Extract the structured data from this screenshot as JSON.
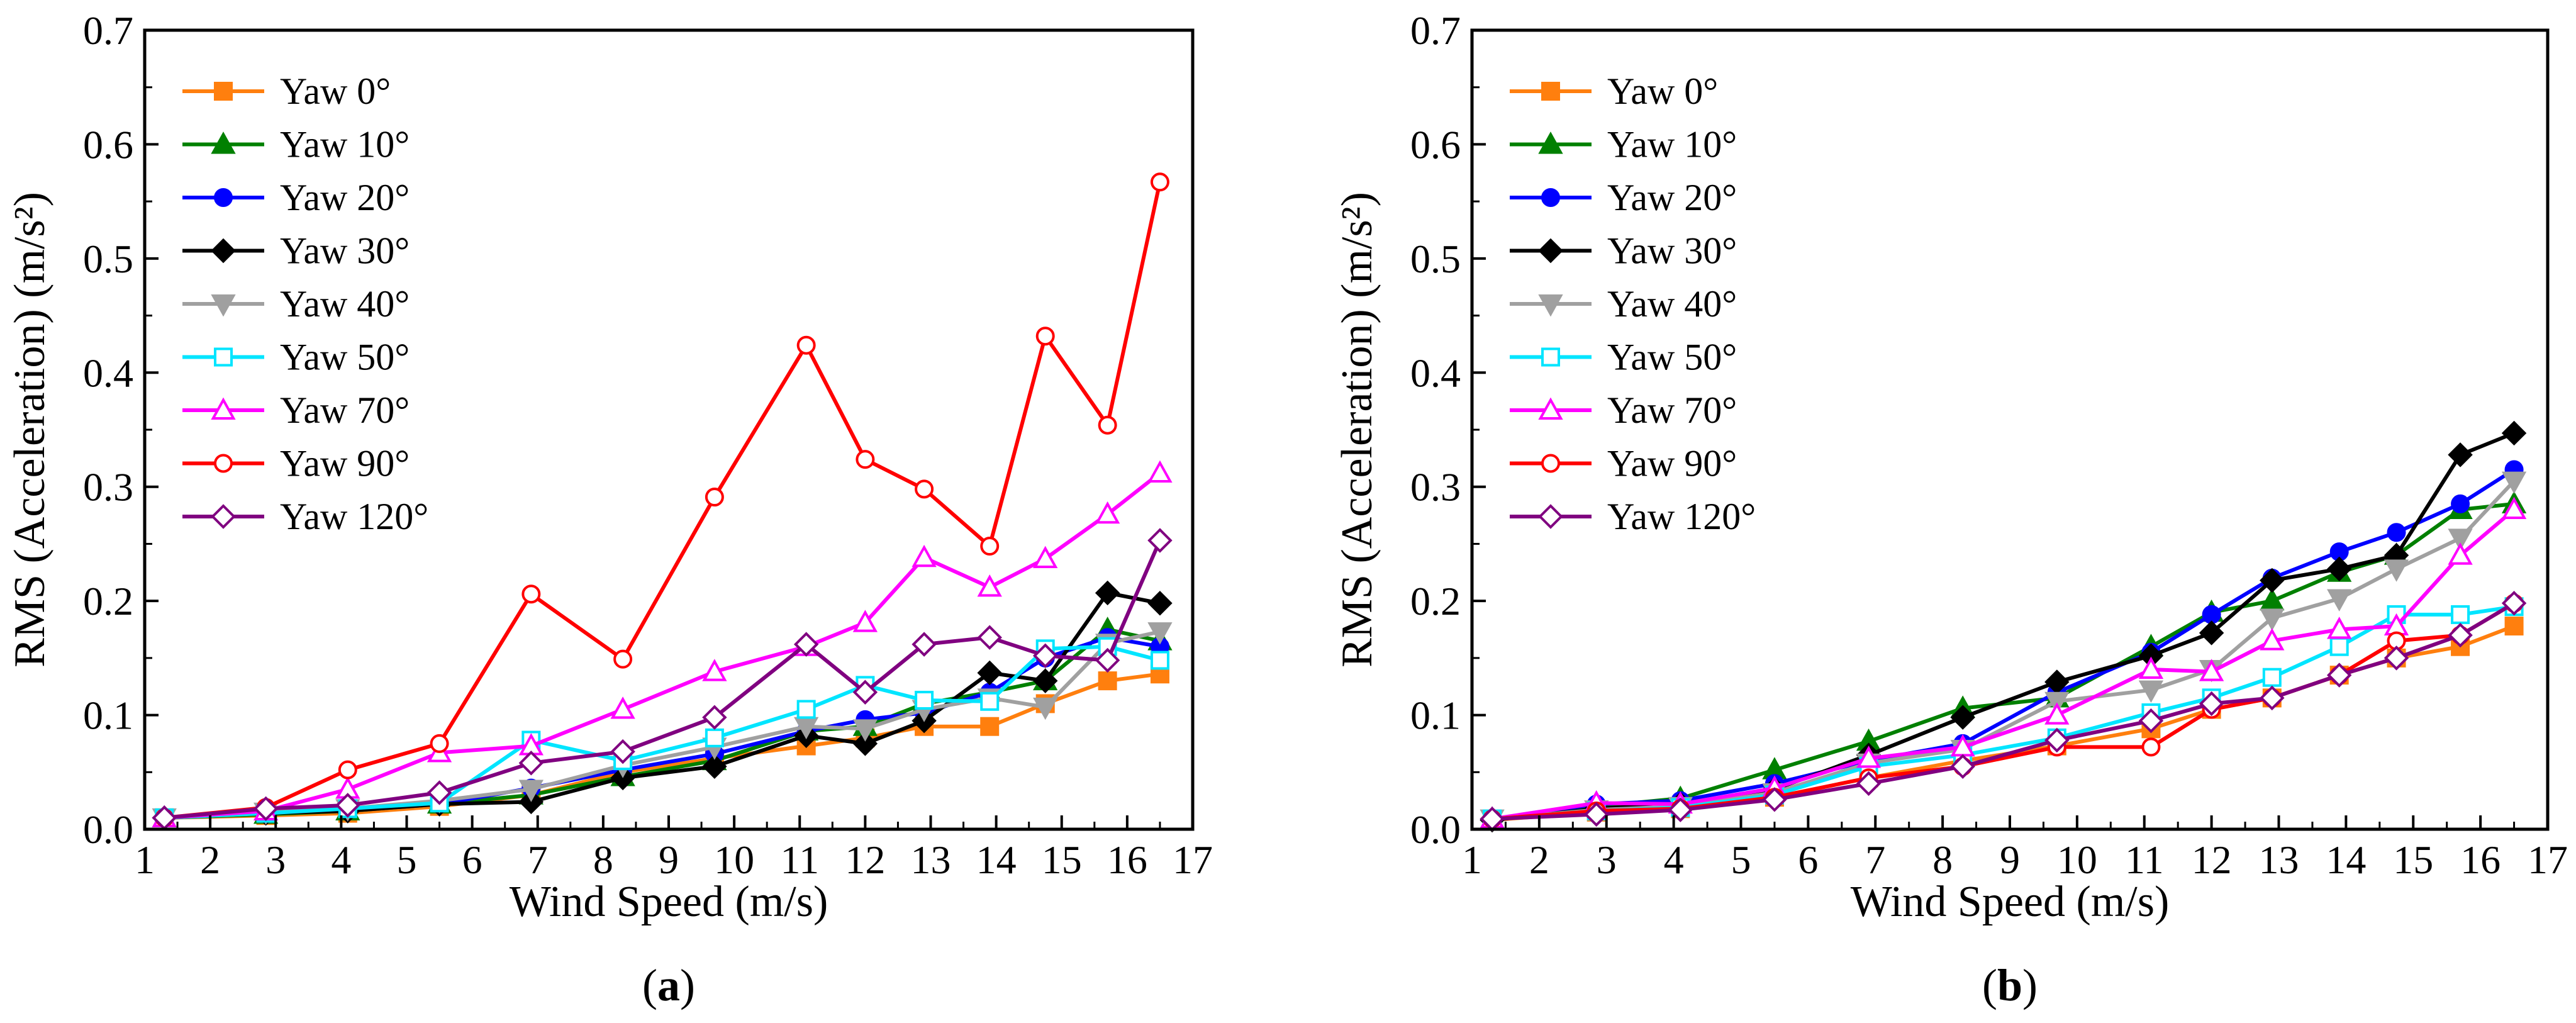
{
  "chart_data": [
    {
      "type": "line",
      "panel_label": {
        "open": "(",
        "letter": "a",
        "close": ")"
      },
      "title": "",
      "xlabel": "Wind Speed (m/s)",
      "ylabel": "RMS (Acceleration) (m/s²)",
      "xlim": [
        1,
        17
      ],
      "ylim": [
        0,
        0.7
      ],
      "xticks": [
        "1",
        "2",
        "3",
        "4",
        "5",
        "6",
        "7",
        "8",
        "9",
        "10",
        "11",
        "12",
        "13",
        "14",
        "15",
        "16",
        "17"
      ],
      "yticks": [
        "0.0",
        "0.1",
        "0.2",
        "0.3",
        "0.4",
        "0.5",
        "0.6",
        "0.7"
      ],
      "legend_position": "top-left",
      "x": [
        1.3,
        2.85,
        4.1,
        5.5,
        6.9,
        8.3,
        9.7,
        11.1,
        12.0,
        12.9,
        13.9,
        14.75,
        15.7,
        16.5
      ],
      "series": [
        {
          "name": "Yaw 0°",
          "color": "#FF7F0E",
          "marker": "square",
          "filled": true,
          "values": [
            0.01,
            0.012,
            0.014,
            0.02,
            0.03,
            0.05,
            0.062,
            0.073,
            0.08,
            0.09,
            0.09,
            0.11,
            0.13,
            0.136
          ]
        },
        {
          "name": "Yaw 10°",
          "color": "#008000",
          "marker": "triangle-up",
          "filled": true,
          "values": [
            0.01,
            0.013,
            0.016,
            0.022,
            0.03,
            0.046,
            0.06,
            0.086,
            0.09,
            0.11,
            0.12,
            0.13,
            0.175,
            0.165
          ]
        },
        {
          "name": "Yaw 20°",
          "color": "#0000FF",
          "marker": "circle",
          "filled": true,
          "values": [
            0.01,
            0.015,
            0.017,
            0.022,
            0.036,
            0.052,
            0.066,
            0.086,
            0.096,
            0.102,
            0.12,
            0.15,
            0.168,
            0.16
          ]
        },
        {
          "name": "Yaw 30°",
          "color": "#000000",
          "marker": "diamond",
          "filled": true,
          "values": [
            0.01,
            0.014,
            0.016,
            0.022,
            0.024,
            0.045,
            0.055,
            0.082,
            0.075,
            0.095,
            0.137,
            0.13,
            0.207,
            0.198
          ]
        },
        {
          "name": "Yaw 40°",
          "color": "#A0A0A0",
          "marker": "triangle-down",
          "filled": true,
          "values": [
            0.01,
            0.015,
            0.018,
            0.025,
            0.035,
            0.056,
            0.072,
            0.09,
            0.088,
            0.105,
            0.115,
            0.107,
            0.163,
            0.173
          ]
        },
        {
          "name": "Yaw 50°",
          "color": "#00E5FF",
          "marker": "square",
          "filled": false,
          "values": [
            0.01,
            0.014,
            0.018,
            0.023,
            0.078,
            0.06,
            0.08,
            0.105,
            0.126,
            0.113,
            0.112,
            0.158,
            0.16,
            0.148
          ]
        },
        {
          "name": "Yaw 70°",
          "color": "#FF00FF",
          "marker": "triangle-up",
          "filled": false,
          "values": [
            0.01,
            0.016,
            0.035,
            0.067,
            0.073,
            0.105,
            0.138,
            0.16,
            0.181,
            0.238,
            0.212,
            0.237,
            0.276,
            0.312
          ]
        },
        {
          "name": "Yaw 90°",
          "color": "#FF0000",
          "marker": "circle",
          "filled": false,
          "values": [
            0.01,
            0.019,
            0.052,
            0.075,
            0.206,
            0.149,
            0.291,
            0.424,
            0.324,
            0.298,
            0.248,
            0.432,
            0.354,
            0.567
          ]
        },
        {
          "name": "Yaw 120°",
          "color": "#800080",
          "marker": "diamond",
          "filled": false,
          "values": [
            0.01,
            0.018,
            0.021,
            0.032,
            0.058,
            0.068,
            0.098,
            0.162,
            0.12,
            0.162,
            0.168,
            0.152,
            0.148,
            0.253
          ]
        }
      ]
    },
    {
      "type": "line",
      "panel_label": {
        "open": "(",
        "letter": "b",
        "close": ")"
      },
      "title": "",
      "xlabel": "Wind Speed (m/s)",
      "ylabel": "RMS (Acceleration) (m/s²)",
      "xlim": [
        1,
        17
      ],
      "ylim": [
        0,
        0.7
      ],
      "xticks": [
        "1",
        "2",
        "3",
        "4",
        "5",
        "6",
        "7",
        "8",
        "9",
        "10",
        "11",
        "12",
        "13",
        "14",
        "15",
        "16",
        "17"
      ],
      "yticks": [
        "0.0",
        "0.1",
        "0.2",
        "0.3",
        "0.4",
        "0.5",
        "0.6",
        "0.7"
      ],
      "legend_position": "top-left",
      "x": [
        1.3,
        2.85,
        4.1,
        5.5,
        6.9,
        8.3,
        9.7,
        11.1,
        12.0,
        12.9,
        13.9,
        14.75,
        15.7,
        16.5
      ],
      "series": [
        {
          "name": "Yaw 0°",
          "color": "#FF7F0E",
          "marker": "square",
          "filled": true,
          "values": [
            0.008,
            0.015,
            0.018,
            0.028,
            0.045,
            0.06,
            0.073,
            0.088,
            0.105,
            0.115,
            0.135,
            0.15,
            0.16,
            0.178
          ]
        },
        {
          "name": "Yaw 10°",
          "color": "#008000",
          "marker": "triangle-up",
          "filled": true,
          "values": [
            0.009,
            0.02,
            0.027,
            0.052,
            0.077,
            0.106,
            0.115,
            0.16,
            0.19,
            0.2,
            0.225,
            0.24,
            0.28,
            0.285
          ]
        },
        {
          "name": "Yaw 20°",
          "color": "#0000FF",
          "marker": "circle",
          "filled": true,
          "values": [
            0.009,
            0.022,
            0.025,
            0.04,
            0.06,
            0.075,
            0.12,
            0.155,
            0.188,
            0.22,
            0.243,
            0.26,
            0.285,
            0.315
          ]
        },
        {
          "name": "Yaw 30°",
          "color": "#000000",
          "marker": "diamond",
          "filled": true,
          "values": [
            0.008,
            0.018,
            0.022,
            0.035,
            0.065,
            0.098,
            0.129,
            0.152,
            0.172,
            0.218,
            0.228,
            0.24,
            0.328,
            0.347
          ]
        },
        {
          "name": "Yaw 40°",
          "color": "#A0A0A0",
          "marker": "triangle-down",
          "filled": true,
          "values": [
            0.009,
            0.017,
            0.02,
            0.032,
            0.058,
            0.07,
            0.112,
            0.122,
            0.14,
            0.185,
            0.202,
            0.228,
            0.255,
            0.305
          ]
        },
        {
          "name": "Yaw 50°",
          "color": "#00E5FF",
          "marker": "square",
          "filled": false,
          "values": [
            0.009,
            0.016,
            0.019,
            0.03,
            0.055,
            0.065,
            0.08,
            0.102,
            0.115,
            0.133,
            0.16,
            0.188,
            0.188,
            0.195
          ]
        },
        {
          "name": "Yaw 70°",
          "color": "#FF00FF",
          "marker": "triangle-up",
          "filled": false,
          "values": [
            0.009,
            0.023,
            0.022,
            0.036,
            0.062,
            0.072,
            0.1,
            0.14,
            0.138,
            0.165,
            0.175,
            0.178,
            0.24,
            0.28
          ]
        },
        {
          "name": "Yaw 90°",
          "color": "#FF0000",
          "marker": "circle",
          "filled": false,
          "values": [
            0.009,
            0.016,
            0.018,
            0.028,
            0.045,
            0.055,
            0.072,
            0.072,
            0.105,
            0.115,
            0.135,
            0.165,
            0.17,
            0.198
          ]
        },
        {
          "name": "Yaw 120°",
          "color": "#800080",
          "marker": "diamond",
          "filled": false,
          "values": [
            0.009,
            0.013,
            0.017,
            0.026,
            0.04,
            0.055,
            0.078,
            0.095,
            0.11,
            0.115,
            0.135,
            0.15,
            0.17,
            0.198
          ]
        }
      ]
    }
  ]
}
